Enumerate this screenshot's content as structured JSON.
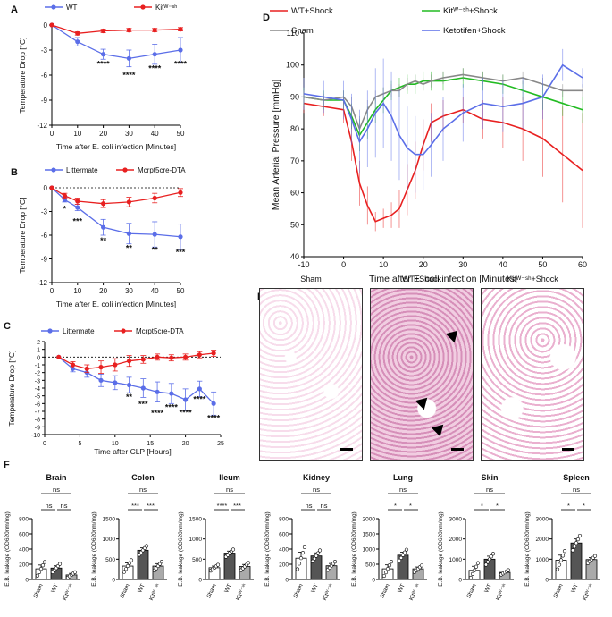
{
  "colors": {
    "blue": "#5b6ee8",
    "red": "#e82020",
    "green": "#22bb22",
    "gray": "#888888",
    "bar_dark": "#555555",
    "bar_light": "#aaaaaa"
  },
  "panels": {
    "A": {
      "letter": "A",
      "chart_data": {
        "type": "line",
        "legend": [
          "WT",
          "Kitᵂ⁻ˢʰ"
        ],
        "xlabel": "Time after E. coli infection [Minutes]",
        "ylabel": "Temperature Drop [°C]",
        "xlim": [
          0,
          50
        ],
        "ylim": [
          -12,
          0
        ],
        "xticks": [
          "0",
          "10",
          "20",
          "30",
          "40",
          "50"
        ],
        "yticks": [
          "0",
          "-3",
          "-6",
          "-9",
          "-12"
        ],
        "x": [
          0,
          10,
          20,
          30,
          40,
          50
        ],
        "series": [
          {
            "name": "WT",
            "color": "blue",
            "values": [
              0,
              -2.0,
              -3.5,
              -4.0,
              -3.5,
              -3.0
            ],
            "err": [
              0,
              0.5,
              0.6,
              1.0,
              1.2,
              1.5
            ]
          },
          {
            "name": "Kit",
            "color": "red",
            "values": [
              0,
              -1.0,
              -0.7,
              -0.6,
              -0.6,
              -0.5
            ],
            "err": [
              0,
              0.2,
              0.2,
              0.2,
              0.2,
              0.2
            ]
          }
        ],
        "annotations": [
          {
            "x": 20,
            "y": -5.0,
            "text": "****"
          },
          {
            "x": 30,
            "y": -6.3,
            "text": "****"
          },
          {
            "x": 40,
            "y": -5.5,
            "text": "****"
          },
          {
            "x": 50,
            "y": -5.0,
            "text": "****"
          }
        ]
      }
    },
    "B": {
      "letter": "B",
      "chart_data": {
        "type": "line",
        "legend": [
          "Littermate",
          "Mcrpt5cre-DTA"
        ],
        "xlabel": "Time after E. coli infection [Minutes]",
        "ylabel": "Temperature Drop [°C]",
        "xlim": [
          0,
          50
        ],
        "ylim": [
          -12,
          0
        ],
        "xticks": [
          "0",
          "10",
          "20",
          "30",
          "40",
          "50"
        ],
        "yticks": [
          "0",
          "-3",
          "-6",
          "-9",
          "-12"
        ],
        "x": [
          0,
          5,
          10,
          20,
          30,
          40,
          50
        ],
        "series": [
          {
            "name": "Littermate",
            "color": "blue",
            "values": [
              0,
              -1.5,
              -2.5,
              -5.0,
              -5.8,
              -5.9,
              -6.2
            ],
            "err": [
              0,
              0.3,
              0.4,
              1.0,
              1.3,
              1.6,
              1.6
            ]
          },
          {
            "name": "Mcrpt5cre-DTA",
            "color": "red",
            "values": [
              0,
              -1.0,
              -1.7,
              -2.0,
              -1.8,
              -1.3,
              -0.6
            ],
            "err": [
              0,
              0.3,
              0.4,
              0.5,
              0.6,
              0.6,
              0.5
            ]
          }
        ],
        "annotations": [
          {
            "x": 5,
            "y": -3.0,
            "text": "*"
          },
          {
            "x": 10,
            "y": -4.6,
            "text": "***"
          },
          {
            "x": 20,
            "y": -7.0,
            "text": "**"
          },
          {
            "x": 30,
            "y": -8.0,
            "text": "**"
          },
          {
            "x": 40,
            "y": -8.2,
            "text": "**"
          },
          {
            "x": 50,
            "y": -8.5,
            "text": "***"
          }
        ]
      }
    },
    "C": {
      "letter": "C",
      "chart_data": {
        "type": "line",
        "legend": [
          "Littermate",
          "Mcrpt5cre-DTA"
        ],
        "xlabel": "Time after CLP [Hours]",
        "ylabel": "Temperature Drop [°C]",
        "xlim": [
          0,
          25
        ],
        "ylim": [
          -10,
          2
        ],
        "xticks": [
          "0",
          "5",
          "10",
          "15",
          "20",
          "25"
        ],
        "yticks": [
          "2",
          "1",
          "0",
          "-1",
          "-2",
          "-3",
          "-4",
          "-5",
          "-6",
          "-7",
          "-8",
          "-9",
          "-10"
        ],
        "x": [
          2,
          4,
          6,
          8,
          10,
          12,
          14,
          16,
          18,
          20,
          22,
          24
        ],
        "series": [
          {
            "name": "Littermate",
            "color": "blue",
            "values": [
              0,
              -1.5,
              -2.0,
              -3.0,
              -3.3,
              -3.6,
              -4.0,
              -4.5,
              -4.7,
              -5.5,
              -4.1,
              -6.0
            ],
            "err": [
              0,
              0.4,
              0.6,
              0.8,
              0.9,
              1.0,
              1.2,
              1.3,
              1.3,
              1.4,
              1.0,
              1.5
            ]
          },
          {
            "name": "Mcrpt5cre-DTA",
            "color": "red",
            "values": [
              0,
              -1.0,
              -1.5,
              -1.3,
              -1.0,
              -0.5,
              -0.3,
              0,
              -0.1,
              0,
              0.3,
              0.5
            ],
            "err": [
              0,
              0.4,
              0.5,
              0.8,
              0.8,
              0.7,
              0.5,
              0.4,
              0.4,
              0.4,
              0.4,
              0.4
            ]
          }
        ],
        "annotations": [
          {
            "x": 12,
            "y": -5.5,
            "text": "**"
          },
          {
            "x": 14,
            "y": -6.4,
            "text": "***"
          },
          {
            "x": 16,
            "y": -7.6,
            "text": "****"
          },
          {
            "x": 18,
            "y": -6.8,
            "text": "****"
          },
          {
            "x": 20,
            "y": -7.5,
            "text": "****"
          },
          {
            "x": 22,
            "y": -5.8,
            "text": "****"
          },
          {
            "x": 24,
            "y": -8.2,
            "text": "****"
          }
        ]
      }
    },
    "D": {
      "letter": "D",
      "chart_data": {
        "type": "line",
        "legend": [
          "WT+Shock",
          "Kitᵂ⁻ˢʰ+Shock",
          "Sham",
          "Ketotifen+Shock"
        ],
        "xlabel": "Time after E. coli infection [Minutes]",
        "ylabel": "Mean Arterial Pressure [mmHg]",
        "xlim": [
          -10,
          60
        ],
        "ylim": [
          40,
          110
        ],
        "xticks": [
          "-10",
          "0",
          "10",
          "20",
          "30",
          "40",
          "50",
          "60"
        ],
        "yticks": [
          "40",
          "50",
          "60",
          "70",
          "80",
          "90",
          "100",
          "110"
        ],
        "x": [
          -10,
          -5,
          0,
          2,
          4,
          6,
          8,
          10,
          12,
          14,
          16,
          18,
          20,
          22,
          25,
          30,
          35,
          40,
          45,
          50,
          55,
          60
        ],
        "series": [
          {
            "name": "WT+Shock",
            "color": "red",
            "values": [
              88,
              87,
              86,
              76,
              63,
              56,
              51,
              52,
              53,
              55,
              61,
              67,
              75,
              82,
              84,
              86,
              83,
              82,
              80,
              77,
              72,
              67
            ],
            "err": [
              3,
              3,
              4,
              6,
              7,
              6,
              3,
              3,
              4,
              6,
              8,
              9,
              8,
              6,
              5,
              4,
              6,
              8,
              10,
              12,
              15,
              18
            ]
          },
          {
            "name": "Kit+Shock",
            "color": "green",
            "values": [
              90,
              89,
              89,
              84,
              78,
              82,
              86,
              89,
              92,
              93,
              94,
              94,
              95,
              95,
              95,
              96,
              95,
              94,
              92,
              90,
              88,
              86
            ],
            "err": [
              3,
              3,
              3,
              4,
              5,
              5,
              4,
              4,
              3,
              3,
              3,
              3,
              3,
              3,
              3,
              3,
              3,
              3,
              3,
              4,
              4,
              4
            ]
          },
          {
            "name": "Sham",
            "color": "gray",
            "values": [
              90,
              89,
              90,
              87,
              80,
              86,
              90,
              91,
              92,
              92,
              94,
              95,
              94,
              95,
              96,
              97,
              96,
              95,
              96,
              94,
              92,
              92
            ],
            "err": [
              2,
              2,
              2,
              3,
              4,
              3,
              2,
              2,
              2,
              2,
              2,
              2,
              2,
              2,
              2,
              2,
              2,
              2,
              2,
              2,
              2,
              2
            ]
          },
          {
            "name": "Ketotifen+Shock",
            "color": "blue",
            "values": [
              91,
              90,
              89,
              83,
              76,
              80,
              85,
              88,
              84,
              78,
              74,
              72,
              72,
              75,
              80,
              85,
              88,
              87,
              88,
              90,
              100,
              96
            ],
            "err": [
              5,
              5,
              6,
              8,
              10,
              12,
              14,
              14,
              14,
              14,
              13,
              12,
              11,
              10,
              10,
              9,
              8,
              8,
              8,
              7,
              5,
              3
            ]
          }
        ]
      }
    },
    "E": {
      "letter": "E",
      "images": [
        {
          "title": "Sham"
        },
        {
          "title": "WT+Shock"
        },
        {
          "title": "Kitᵂ⁻ˢʰ+Shock"
        }
      ]
    },
    "F": {
      "letter": "F",
      "chart_data": [
        {
          "type": "bar",
          "title": "Brain",
          "ylim": [
            0,
            800
          ],
          "yticks": [
            "0",
            "200",
            "400",
            "600",
            "800"
          ],
          "categories": [
            "Sham",
            "WT",
            "Kitᵂ⁻ˢʰ"
          ],
          "values": [
            140,
            150,
            60
          ],
          "err": [
            50,
            30,
            20
          ],
          "sig": [
            "ns",
            "ns",
            "ns"
          ]
        },
        {
          "type": "bar",
          "title": "Colon",
          "ylim": [
            0,
            1500
          ],
          "yticks": [
            "0",
            "500",
            "1000",
            "1500"
          ],
          "categories": [
            "Sham",
            "WT",
            "Kitᵂ⁻ˢʰ"
          ],
          "values": [
            330,
            720,
            330
          ],
          "err": [
            80,
            60,
            60
          ],
          "sig": [
            "***",
            "***",
            "ns"
          ]
        },
        {
          "type": "bar",
          "title": "Ileum",
          "ylim": [
            0,
            1500
          ],
          "yticks": [
            "0",
            "500",
            "1000",
            "1500"
          ],
          "categories": [
            "Sham",
            "WT",
            "Kitᵂ⁻ˢʰ"
          ],
          "values": [
            290,
            650,
            320
          ],
          "err": [
            40,
            50,
            50
          ],
          "sig": [
            "****",
            "***",
            "ns"
          ]
        },
        {
          "type": "bar",
          "title": "Kidney",
          "ylim": [
            0,
            800
          ],
          "yticks": [
            "0",
            "200",
            "400",
            "600",
            "800"
          ],
          "categories": [
            "Sham",
            "WT",
            "Kitᵂ⁻ˢʰ"
          ],
          "values": [
            280,
            310,
            180
          ],
          "err": [
            80,
            40,
            30
          ],
          "sig": [
            "ns",
            "ns",
            "ns"
          ]
        },
        {
          "type": "bar",
          "title": "Lung",
          "ylim": [
            0,
            2000
          ],
          "yticks": [
            "0",
            "500",
            "1000",
            "1500",
            "2000"
          ],
          "categories": [
            "Sham",
            "WT",
            "Kitᵂ⁻ˢʰ"
          ],
          "values": [
            350,
            800,
            350
          ],
          "err": [
            130,
            100,
            60
          ],
          "sig": [
            "*",
            "*",
            "ns"
          ]
        },
        {
          "type": "bar",
          "title": "Skin",
          "ylim": [
            0,
            3000
          ],
          "yticks": [
            "0",
            "1000",
            "2000",
            "3000"
          ],
          "categories": [
            "Sham",
            "WT",
            "Kitᵂ⁻ˢʰ"
          ],
          "values": [
            450,
            1000,
            350
          ],
          "err": [
            200,
            150,
            60
          ],
          "sig": [
            "*",
            "*",
            "ns"
          ]
        },
        {
          "type": "bar",
          "title": "Spleen",
          "ylim": [
            0,
            3000
          ],
          "yticks": [
            "0",
            "1000",
            "2000",
            "3000"
          ],
          "categories": [
            "Sham",
            "WT",
            "Kitᵂ⁻ˢʰ"
          ],
          "values": [
            950,
            1800,
            980
          ],
          "err": [
            250,
            200,
            100
          ],
          "sig": [
            "*",
            "*",
            "ns"
          ]
        }
      ],
      "ylabel": "E.B. leakage (OD620nm/mg)"
    }
  }
}
